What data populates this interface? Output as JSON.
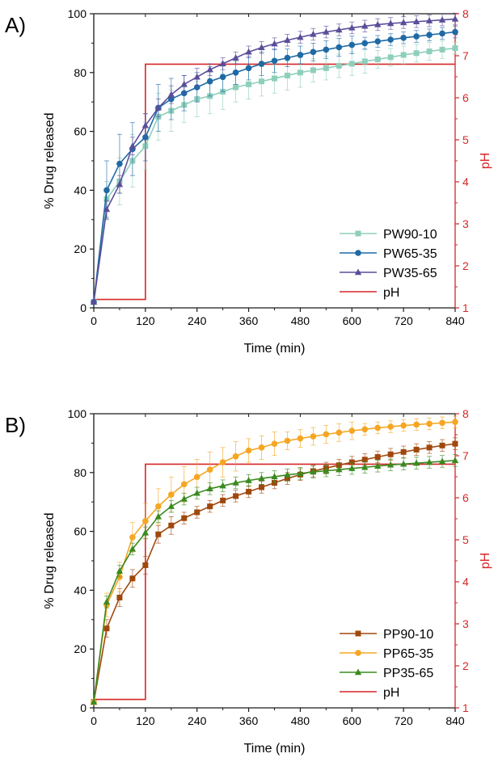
{
  "chart_data": [
    {
      "type": "line",
      "panel_label": "A)",
      "xlabel": "Time (min)",
      "ylabel": "% Drug released",
      "y2label": "pH",
      "xlim": [
        0,
        840
      ],
      "ylim": [
        0,
        100
      ],
      "y2lim": [
        1,
        8
      ],
      "xticks": [
        0,
        120,
        240,
        360,
        480,
        600,
        720,
        840
      ],
      "yticks": [
        0,
        20,
        40,
        60,
        80,
        100
      ],
      "y2ticks": [
        1,
        2,
        3,
        4,
        5,
        6,
        7,
        8
      ],
      "legend_position": "bottom-right",
      "x": [
        0,
        30,
        60,
        90,
        120,
        150,
        180,
        210,
        240,
        270,
        300,
        330,
        360,
        390,
        420,
        450,
        480,
        510,
        540,
        570,
        600,
        630,
        660,
        690,
        720,
        750,
        780,
        810,
        840
      ],
      "series": [
        {
          "name": "PW90-10",
          "color": "#8ecfbb",
          "marker": "square",
          "values": [
            2,
            37,
            43,
            50,
            55,
            65,
            67,
            69,
            71,
            72,
            73.5,
            75,
            76,
            77,
            78,
            79,
            80,
            80.8,
            81.5,
            82.3,
            83,
            83.8,
            84.5,
            85.2,
            86,
            86.6,
            87.2,
            87.8,
            88.3
          ],
          "error": [
            0,
            6,
            8,
            9,
            8,
            8,
            7,
            6,
            6,
            6,
            6,
            5,
            5,
            5,
            5,
            5,
            5,
            4,
            4,
            4,
            4,
            4,
            3,
            3,
            3,
            3,
            3,
            3,
            2
          ]
        },
        {
          "name": "PW65-35",
          "color": "#1f6aa5",
          "marker": "circle",
          "values": [
            2,
            40,
            49,
            54,
            58,
            68,
            71,
            73,
            75,
            77,
            78.5,
            80,
            81.5,
            83,
            84,
            85,
            86,
            87,
            87.8,
            88.6,
            89.4,
            90,
            90.6,
            91.2,
            91.8,
            92.3,
            92.8,
            93.3,
            93.8
          ],
          "error": [
            0,
            10,
            10,
            9,
            8,
            8,
            7,
            6,
            5,
            5,
            5,
            4,
            4,
            4,
            4,
            3,
            3,
            3,
            3,
            3,
            3,
            2,
            2,
            2,
            2,
            2,
            2,
            2,
            2
          ]
        },
        {
          "name": "PW35-65",
          "color": "#5a4d9a",
          "marker": "triangle",
          "values": [
            2,
            33.5,
            42,
            55,
            62,
            68,
            72.5,
            76,
            78.5,
            81,
            83,
            85,
            87,
            88.5,
            89.8,
            91,
            92,
            93,
            93.8,
            94.5,
            95.2,
            95.8,
            96.3,
            96.7,
            97,
            97.3,
            97.6,
            97.9,
            98.2
          ],
          "error": [
            0,
            3,
            3,
            3,
            4,
            3,
            3,
            3,
            3,
            2,
            2,
            2,
            2,
            2,
            2,
            2,
            2,
            2,
            2,
            2,
            2,
            2,
            2,
            2,
            2,
            2,
            2,
            2,
            2
          ]
        }
      ],
      "ph_series": {
        "name": "pH",
        "color": "#d62728",
        "points": [
          [
            0,
            1.2
          ],
          [
            120,
            1.2
          ],
          [
            120,
            6.8
          ],
          [
            840,
            6.8
          ]
        ]
      }
    },
    {
      "type": "line",
      "panel_label": "B)",
      "xlabel": "Time (min)",
      "ylabel": "% Drug released",
      "y2label": "pH",
      "xlim": [
        0,
        840
      ],
      "ylim": [
        0,
        100
      ],
      "y2lim": [
        1,
        8
      ],
      "xticks": [
        0,
        120,
        240,
        360,
        480,
        600,
        720,
        840
      ],
      "yticks": [
        0,
        20,
        40,
        60,
        80,
        100
      ],
      "y2ticks": [
        1,
        2,
        3,
        4,
        5,
        6,
        7,
        8
      ],
      "legend_position": "bottom-right",
      "x": [
        0,
        30,
        60,
        90,
        120,
        150,
        180,
        210,
        240,
        270,
        300,
        330,
        360,
        390,
        420,
        450,
        480,
        510,
        540,
        570,
        600,
        630,
        660,
        690,
        720,
        750,
        780,
        810,
        840
      ],
      "series": [
        {
          "name": "PP90-10",
          "color": "#a0480c",
          "marker": "square",
          "values": [
            2,
            27,
            37.5,
            44,
            48.5,
            59,
            62,
            64.5,
            66.5,
            68.5,
            70.5,
            72,
            73.5,
            75,
            76.5,
            78,
            79.3,
            80.5,
            81.5,
            82.5,
            83.5,
            84.4,
            85.3,
            86.2,
            87,
            87.8,
            88.5,
            89.2,
            89.8
          ],
          "error": [
            0,
            3,
            3,
            3,
            3,
            3,
            3,
            2,
            2,
            2,
            2,
            2,
            2,
            2,
            2,
            2,
            2,
            2,
            2,
            2,
            2,
            2,
            2,
            2,
            2,
            2,
            2,
            2,
            2
          ]
        },
        {
          "name": "PP65-35",
          "color": "#f5a623",
          "marker": "circle",
          "values": [
            2,
            35,
            44.5,
            58,
            63.5,
            68.5,
            72.5,
            76,
            78.5,
            81,
            83.5,
            85.5,
            87.5,
            88.5,
            89.8,
            90.8,
            91.6,
            92.3,
            93,
            93.6,
            94.2,
            94.7,
            95.2,
            95.6,
            96,
            96.3,
            96.6,
            96.9,
            97.2
          ],
          "error": [
            0,
            4,
            5,
            5,
            6,
            6,
            6,
            6,
            6,
            6,
            5,
            5,
            4,
            4,
            4,
            3,
            3,
            3,
            3,
            3,
            3,
            2,
            2,
            2,
            2,
            2,
            2,
            2,
            2
          ]
        },
        {
          "name": "PP35-65",
          "color": "#3a8a1f",
          "marker": "triangle",
          "values": [
            2,
            36,
            46.5,
            54,
            59.5,
            65,
            68.5,
            71,
            73,
            74.5,
            75.5,
            76.5,
            77.3,
            78,
            78.6,
            79.2,
            79.7,
            80.2,
            80.6,
            81,
            81.4,
            81.8,
            82.2,
            82.6,
            82.9,
            83.2,
            83.5,
            83.8,
            84.1
          ],
          "error": [
            0,
            2,
            2,
            2,
            2,
            2,
            2,
            2,
            2,
            2,
            2,
            2,
            2,
            2,
            2,
            2,
            2,
            2,
            2,
            2,
            2,
            2,
            2,
            2,
            2,
            2,
            2,
            2,
            2
          ]
        }
      ],
      "ph_series": {
        "name": "pH",
        "color": "#d62728",
        "points": [
          [
            0,
            1.2
          ],
          [
            120,
            1.2
          ],
          [
            120,
            6.8
          ],
          [
            840,
            6.8
          ]
        ]
      }
    }
  ]
}
